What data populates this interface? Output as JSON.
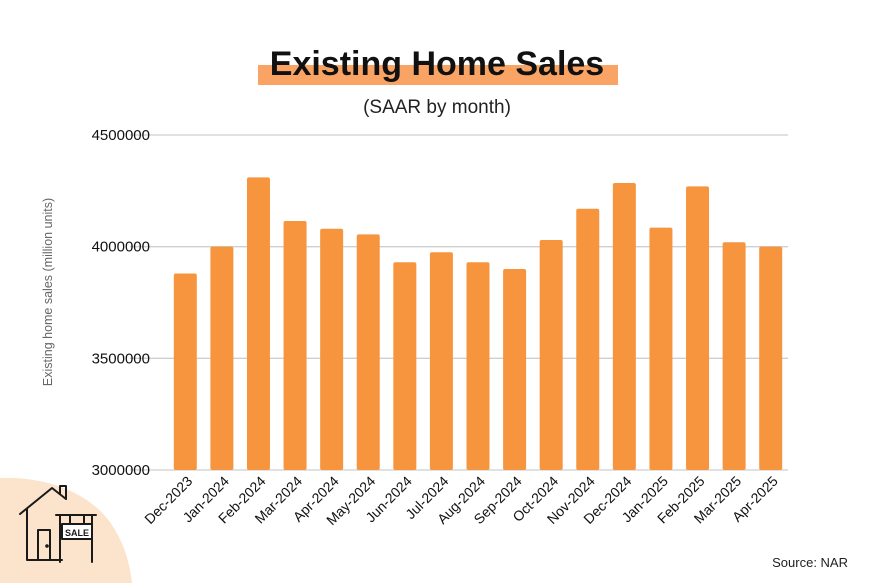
{
  "colors": {
    "bar": "#F7953F",
    "highlight": "#F9A464",
    "corner_blob": "#FCE3CC",
    "grid": "#CFCFCF",
    "text": "#111111"
  },
  "source_label": "Source: NAR",
  "sign_text": "SALE",
  "icons": [
    "house-for-sale-icon"
  ],
  "chart_data": {
    "type": "bar",
    "title": "Existing Home Sales",
    "subtitle": "(SAAR by month)",
    "xlabel": "",
    "ylabel": "Existing home sales (million units)",
    "ylim": [
      3000000,
      4500000
    ],
    "yticks": [
      3000000,
      3500000,
      4000000,
      4500000
    ],
    "ytick_labels": [
      "3000000",
      "3500000",
      "4000000",
      "4500000"
    ],
    "grid": true,
    "categories": [
      "Dec-2023",
      "Jan-2024",
      "Feb-2024",
      "Mar-2024",
      "Apr-2024",
      "May-2024",
      "Jun-2024",
      "Jul-2024",
      "Aug-2024",
      "Sep-2024",
      "Oct-2024",
      "Nov-2024",
      "Dec-2024",
      "Jan-2025",
      "Feb-2025",
      "Mar-2025",
      "Apr-2025"
    ],
    "values": [
      3880000,
      4000000,
      4310000,
      4115000,
      4080000,
      4055000,
      3930000,
      3975000,
      3930000,
      3900000,
      4030000,
      4170000,
      4285000,
      4085000,
      4270000,
      4020000,
      4000000
    ]
  }
}
